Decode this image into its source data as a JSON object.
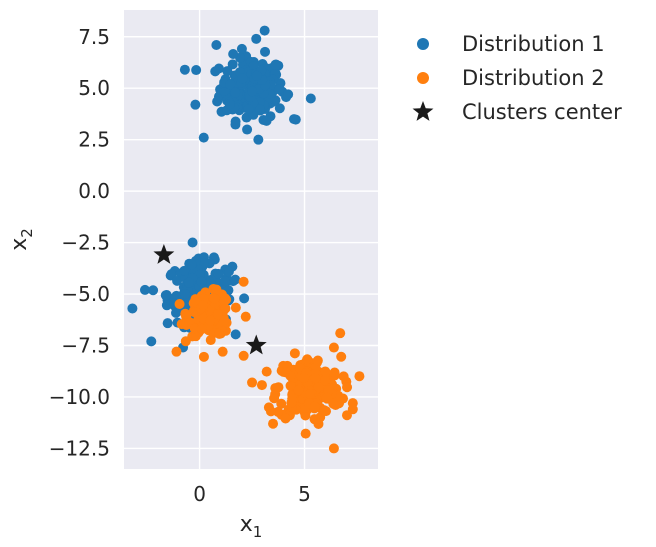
{
  "chart_data": {
    "type": "scatter",
    "xlim": [
      -3.6,
      8.5
    ],
    "ylim": [
      -13.5,
      8.8
    ],
    "xticks": [
      0,
      5
    ],
    "yticks": [
      7.5,
      5.0,
      2.5,
      0.0,
      -2.5,
      -5.0,
      -7.5,
      -10.0,
      -12.5
    ],
    "ytick_labels": [
      "7.5",
      "5.0",
      "2.5",
      "0.0",
      "−2.5",
      "−5.0",
      "−7.5",
      "−10.0",
      "−12.5"
    ],
    "xlabel": {
      "base": "x",
      "sub": "1"
    },
    "ylabel": {
      "base": "x",
      "sub": "2"
    },
    "grid": true,
    "background": "#eaeaf2",
    "legend_position": "outside-right",
    "series": [
      {
        "name": "Distribution 1",
        "color": "#1f77b4",
        "marker": "circle",
        "clusters": [
          {
            "center": [
              2.5,
              5.0
            ],
            "std": [
              0.9,
              0.9
            ],
            "n": 200
          },
          {
            "center": [
              0.0,
              -5.0
            ],
            "std": [
              0.9,
              0.9
            ],
            "n": 200
          }
        ],
        "points": [
          [
            -0.7,
            5.9
          ],
          [
            -0.2,
            4.2
          ],
          [
            0.2,
            2.6
          ],
          [
            2.8,
            2.5
          ],
          [
            0.8,
            7.1
          ],
          [
            2.7,
            7.4
          ],
          [
            3.1,
            7.8
          ],
          [
            5.3,
            4.5
          ],
          [
            4.5,
            3.5
          ],
          [
            -3.2,
            -5.7
          ],
          [
            -2.3,
            -7.3
          ],
          [
            1.7,
            -4.3
          ],
          [
            1.4,
            -3.9
          ],
          [
            -2.6,
            -4.8
          ]
        ]
      },
      {
        "name": "Distribution 2",
        "color": "#ff7f0e",
        "marker": "circle",
        "clusters": [
          {
            "center": [
              0.5,
              -6.0
            ],
            "std": [
              0.6,
              0.6
            ],
            "n": 130
          },
          {
            "center": [
              5.2,
              -9.6
            ],
            "std": [
              0.9,
              0.9
            ],
            "n": 220
          }
        ],
        "points": [
          [
            2.1,
            -4.4
          ],
          [
            2.2,
            -6.1
          ],
          [
            2.1,
            -8.0
          ],
          [
            1.1,
            -7.8
          ],
          [
            -1.1,
            -7.8
          ],
          [
            2.5,
            -9.3
          ],
          [
            7.3,
            -10.3
          ],
          [
            7.3,
            -10.6
          ],
          [
            6.4,
            -12.5
          ],
          [
            3.4,
            -10.7
          ],
          [
            3.5,
            -11.3
          ],
          [
            6.7,
            -6.9
          ],
          [
            6.4,
            -7.6
          ]
        ]
      },
      {
        "name": "Clusters center",
        "color": "#1a1a1a",
        "marker": "star",
        "points": [
          [
            -1.7,
            -3.1
          ],
          [
            2.7,
            -7.5
          ]
        ]
      }
    ]
  }
}
